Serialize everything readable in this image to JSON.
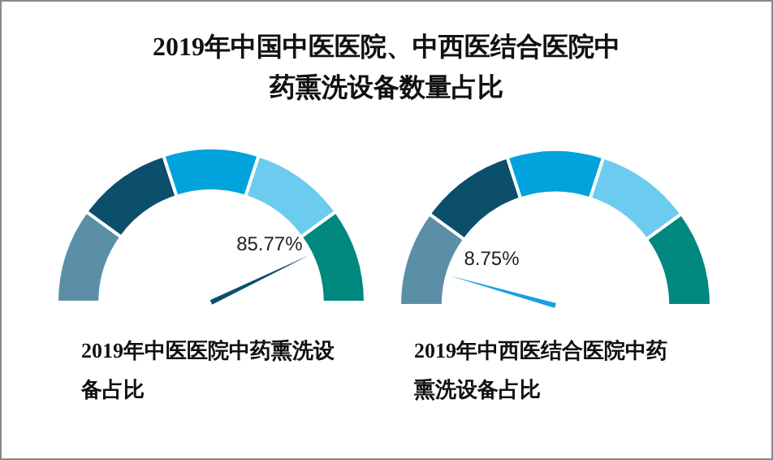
{
  "chart_data": [
    {
      "type": "other",
      "title": "2019年中国中医医院、中西医结合医院中药熏洗设备数量占比",
      "xlabel": "2019年中医医院中药熏洗设备占比",
      "color": "#0b4f6c",
      "values": [
        85.77
      ],
      "value_labels": [
        "85.77%"
      ]
    },
    {
      "type": "other",
      "xlabel": "2019年中西医结合医院中药熏洗设备占比",
      "color": "#1aa0e0",
      "values": [
        8.75
      ],
      "value_labels": [
        "8.75%"
      ]
    }
  ]
}
